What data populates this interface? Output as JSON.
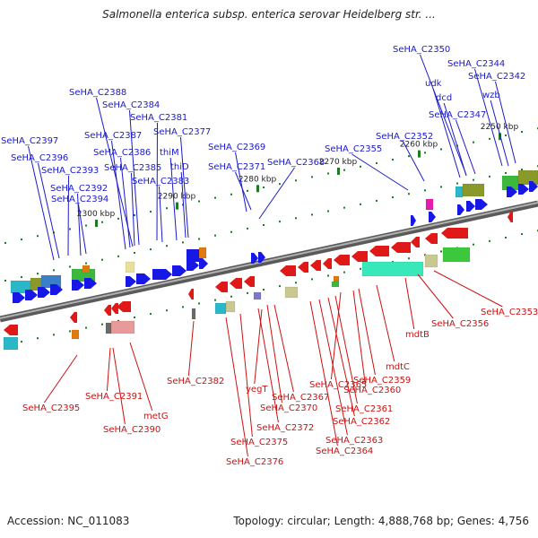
{
  "title": "Salmonella enterica subsp. enterica serovar Heidelberg str. ...",
  "footer": {
    "accession": "Accession: NC_011083",
    "summary": "Topology: circular; Length: 4,888,768 bp; Genes: 4,756"
  },
  "colors": {
    "forward_gene": "#1818e6",
    "reverse_gene": "#e01818",
    "axis": "#7a7a7a",
    "tick": "#1e7a1e",
    "top_label": "#1a1acc",
    "bottom_label": "#cc1111"
  },
  "ticks": [
    "2300 kbp",
    "2290 kbp",
    "2280 kbp",
    "2270 kbp",
    "2260 kbp",
    "2250 kbp"
  ],
  "top_labels": [
    "SeHA_C2350",
    "SeHA_C2344",
    "SeHA_C2342",
    "udk",
    "dcd",
    "wzb",
    "SeHA_C2347",
    "SeHA_C2388",
    "SeHA_C2384",
    "SeHA_C2381",
    "SeHA_C2387",
    "SeHA_C2377",
    "SeHA_C2397",
    "SeHA_C2386",
    "thiM",
    "SeHA_C2369",
    "SeHA_C2352",
    "SeHA_C2396",
    "SeHA_C2385",
    "thiD",
    "SeHA_C2355",
    "SeHA_C2393",
    "SeHA_C2383",
    "SeHA_C2371",
    "SeHA_C2368",
    "SeHA_C2392",
    "SeHA_C2394"
  ],
  "bottom_labels": [
    "SeHA_C2353",
    "SeHA_C2356",
    "mdtB",
    "mdtC",
    "SeHA_C2359",
    "SeHA_C2360",
    "SeHA_C2365",
    "SeHA_C2382",
    "yegT",
    "SeHA_C2367",
    "SeHA_C2391",
    "SeHA_C2395",
    "SeHA_C2370",
    "SeHA_C2361",
    "metG",
    "SeHA_C2362",
    "SeHA_C2372",
    "SeHA_C2390",
    "SeHA_C2363",
    "SeHA_C2375",
    "SeHA_C2364",
    "SeHA_C2376"
  ]
}
